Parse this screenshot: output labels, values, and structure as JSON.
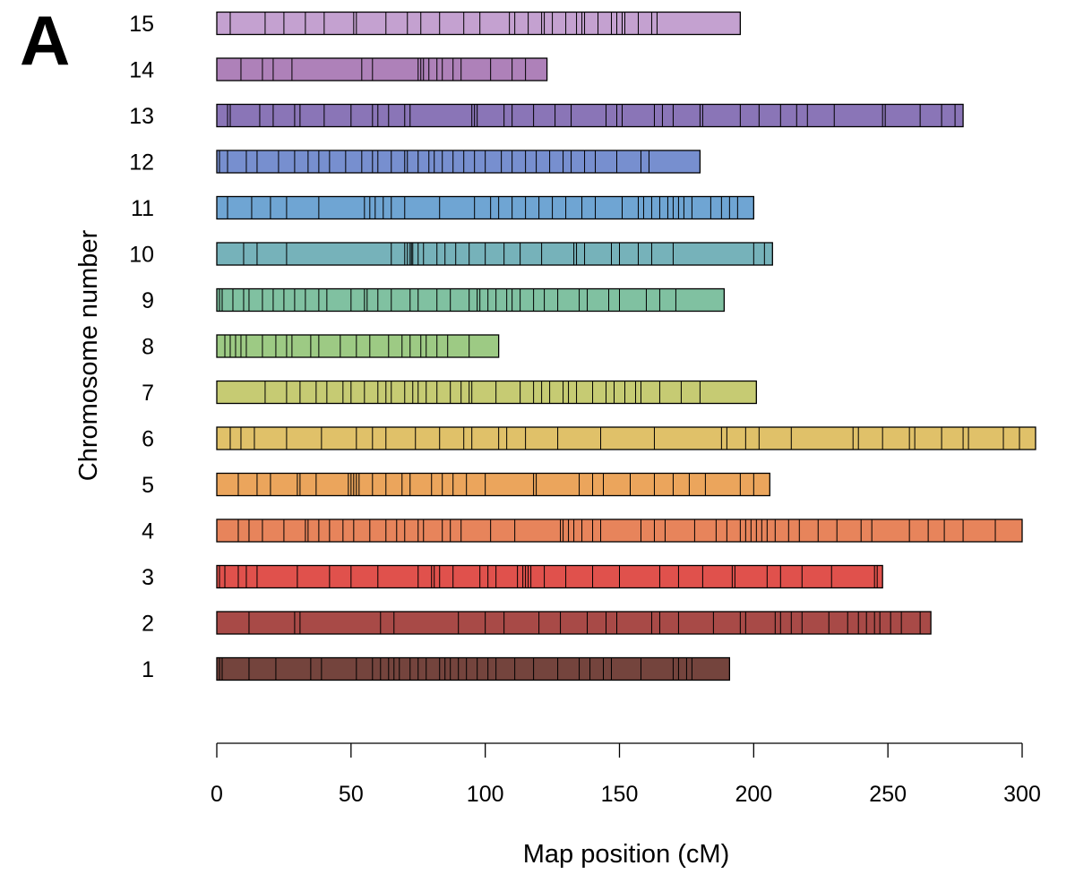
{
  "panel_label": "A",
  "chart_data": {
    "type": "bar",
    "orientation": "horizontal",
    "xlabel": "Map position (cM)",
    "ylabel": "Chromosome number",
    "xlim": [
      0,
      300
    ],
    "xticks": [
      0,
      50,
      100,
      150,
      200,
      250,
      300
    ],
    "grid": false,
    "legend": "none",
    "chromosomes": [
      {
        "label": "1",
        "length": 191,
        "color": "#74443d",
        "markers": [
          1,
          2,
          12,
          22,
          35,
          39,
          52,
          58,
          61,
          64,
          66,
          68,
          72,
          75,
          78,
          83,
          85,
          87,
          90,
          93,
          97,
          101,
          104,
          111,
          118,
          127,
          135,
          139,
          144,
          147,
          158,
          170,
          172,
          175,
          177
        ]
      },
      {
        "label": "2",
        "length": 266,
        "color": "#a84a47",
        "markers": [
          12,
          29,
          31,
          61,
          66,
          90,
          100,
          107,
          120,
          128,
          138,
          145,
          149,
          162,
          165,
          172,
          185,
          195,
          197,
          208,
          210,
          214,
          218,
          228,
          235,
          239,
          242,
          245,
          247,
          251,
          255,
          262
        ]
      },
      {
        "label": "3",
        "length": 248,
        "color": "#e0514c",
        "markers": [
          1,
          3,
          8,
          11,
          15,
          30,
          42,
          50,
          60,
          75,
          80,
          81,
          83,
          88,
          98,
          101,
          104,
          112,
          114,
          115,
          116,
          117,
          122,
          130,
          140,
          150,
          165,
          172,
          181,
          192,
          193,
          205,
          210,
          218,
          229,
          245,
          246
        ]
      },
      {
        "label": "4",
        "length": 300,
        "color": "#e7845b",
        "markers": [
          8,
          12,
          17,
          25,
          33,
          34,
          38,
          42,
          47,
          51,
          57,
          63,
          67,
          70,
          75,
          77,
          84,
          87,
          91,
          102,
          111,
          128,
          129,
          131,
          133,
          136,
          140,
          143,
          158,
          163,
          167,
          178,
          186,
          190,
          195,
          197,
          199,
          201,
          203,
          205,
          208,
          213,
          217,
          224,
          231,
          240,
          244,
          258,
          265,
          271,
          278,
          290,
          300
        ]
      },
      {
        "label": "5",
        "length": 206,
        "color": "#eba55c",
        "markers": [
          8,
          15,
          20,
          30,
          31,
          37,
          49,
          50,
          51,
          52,
          53,
          58,
          63,
          69,
          72,
          80,
          84,
          88,
          93,
          100,
          118,
          119,
          135,
          140,
          144,
          154,
          163,
          170,
          176,
          182,
          195,
          200
        ]
      },
      {
        "label": "6",
        "length": 305,
        "color": "#e0c169",
        "markers": [
          5,
          9,
          14,
          26,
          39,
          52,
          58,
          63,
          74,
          83,
          92,
          95,
          105,
          108,
          115,
          127,
          143,
          163,
          188,
          190,
          197,
          202,
          214,
          237,
          239,
          248,
          258,
          260,
          270,
          278,
          280,
          293,
          299
        ]
      },
      {
        "label": "7",
        "length": 201,
        "color": "#c6cb73",
        "markers": [
          18,
          26,
          31,
          37,
          41,
          47,
          50,
          55,
          60,
          63,
          65,
          70,
          73,
          75,
          78,
          82,
          87,
          91,
          94,
          95,
          104,
          113,
          118,
          121,
          124,
          129,
          131,
          134,
          140,
          145,
          148,
          152,
          156,
          158,
          165,
          173,
          180
        ]
      },
      {
        "label": "8",
        "length": 105,
        "color": "#9dca84",
        "markers": [
          3,
          5,
          7,
          9,
          11,
          17,
          22,
          26,
          28,
          35,
          38,
          46,
          52,
          57,
          64,
          69,
          72,
          76,
          78,
          82,
          86,
          94
        ]
      },
      {
        "label": "9",
        "length": 189,
        "color": "#80c1a1",
        "markers": [
          1,
          2,
          6,
          10,
          12,
          17,
          21,
          25,
          29,
          33,
          38,
          41,
          50,
          55,
          56,
          60,
          65,
          72,
          75,
          82,
          87,
          94,
          97,
          98,
          101,
          104,
          108,
          110,
          113,
          118,
          122,
          127,
          135,
          138,
          146,
          150,
          160,
          165,
          171
        ]
      },
      {
        "label": "10",
        "length": 207,
        "color": "#76b2ba",
        "markers": [
          10,
          15,
          26,
          65,
          70,
          71,
          72,
          72.5,
          73,
          75,
          77,
          82,
          85,
          89,
          94,
          100,
          107,
          113,
          121,
          133,
          134,
          137,
          147,
          150,
          157,
          162,
          170,
          200,
          204
        ]
      },
      {
        "label": "11",
        "length": 200,
        "color": "#6fa5d3",
        "markers": [
          4,
          13,
          20,
          26,
          38,
          55,
          57,
          59,
          62,
          65,
          70,
          83,
          96,
          102,
          105,
          110,
          115,
          120,
          125,
          130,
          136,
          141,
          151,
          157,
          159,
          162,
          165,
          168,
          170,
          172,
          174,
          177,
          184,
          188,
          191,
          194
        ]
      },
      {
        "label": "12",
        "length": 180,
        "color": "#778fcf",
        "markers": [
          1,
          4,
          11,
          15,
          23,
          29,
          34,
          38,
          42,
          48,
          54,
          58,
          60,
          65,
          70,
          71,
          75,
          79,
          81,
          84,
          88,
          92,
          96,
          100,
          106,
          110,
          115,
          119,
          124,
          129,
          132,
          137,
          141,
          149,
          158,
          161
        ]
      },
      {
        "label": "13",
        "length": 278,
        "color": "#8a75b7",
        "markers": [
          4,
          5,
          16,
          21,
          29,
          31,
          40,
          50,
          58,
          60,
          64,
          70,
          72,
          95,
          96,
          97,
          107,
          110,
          118,
          126,
          132,
          145,
          149,
          151,
          163,
          166,
          170,
          180,
          181,
          195,
          202,
          210,
          216,
          220,
          230,
          248,
          249,
          262,
          270,
          275
        ]
      },
      {
        "label": "14",
        "length": 123,
        "color": "#ae81b9",
        "markers": [
          9,
          17,
          21,
          28,
          54,
          58,
          75,
          76,
          77,
          79,
          82,
          84,
          88,
          91,
          102,
          110,
          115
        ]
      },
      {
        "label": "15",
        "length": 195,
        "color": "#c4a1d0",
        "markers": [
          5,
          18,
          25,
          33,
          40,
          51,
          52,
          63,
          71,
          76,
          83,
          92,
          98,
          109,
          111,
          116,
          121,
          122,
          125,
          130,
          134,
          136,
          137,
          142,
          147,
          149,
          151,
          152,
          157,
          162,
          164
        ]
      }
    ]
  }
}
